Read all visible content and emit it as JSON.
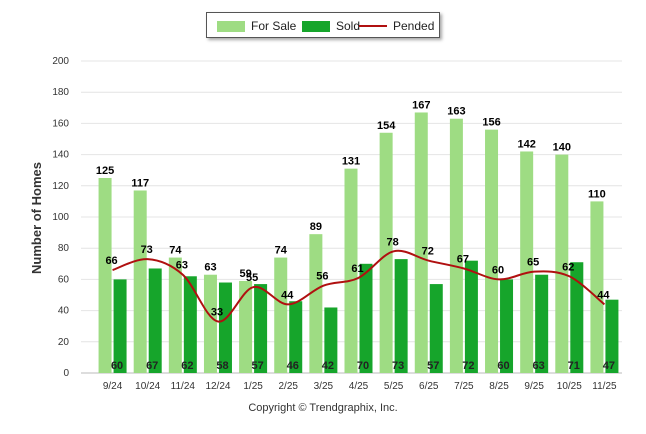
{
  "legend": {
    "for_sale": "For Sale",
    "sold": "Sold",
    "pended": "Pended"
  },
  "copyright": "Copyright © Trendgraphix, Inc.",
  "colors": {
    "for_sale": "#9edc83",
    "sold": "#16a52b",
    "pended": "#b01010",
    "grid": "#e4e4e4"
  },
  "chart_data": {
    "type": "bar",
    "title": "",
    "ylabel": "Number of Homes",
    "xlabel": "",
    "ylim": [
      0,
      200
    ],
    "yticks": [
      0,
      20,
      40,
      60,
      80,
      100,
      120,
      140,
      160,
      180,
      200
    ],
    "categories": [
      "9/24",
      "10/24",
      "11/24",
      "12/24",
      "1/25",
      "2/25",
      "3/25",
      "4/25",
      "5/25",
      "6/25",
      "7/25",
      "8/25",
      "9/25",
      "10/25",
      "11/25"
    ],
    "series": [
      {
        "name": "For Sale",
        "type": "bar",
        "values": [
          125,
          117,
          74,
          63,
          59,
          74,
          89,
          131,
          154,
          167,
          163,
          156,
          142,
          140,
          110
        ]
      },
      {
        "name": "Sold",
        "type": "bar",
        "values": [
          60,
          67,
          62,
          58,
          57,
          46,
          42,
          70,
          73,
          57,
          72,
          60,
          63,
          71,
          47
        ]
      },
      {
        "name": "Pended",
        "type": "line",
        "values": [
          66,
          73,
          63,
          33,
          55,
          44,
          56,
          61,
          78,
          72,
          67,
          60,
          65,
          62,
          44
        ]
      }
    ],
    "legend": "top-center",
    "grid": true
  }
}
